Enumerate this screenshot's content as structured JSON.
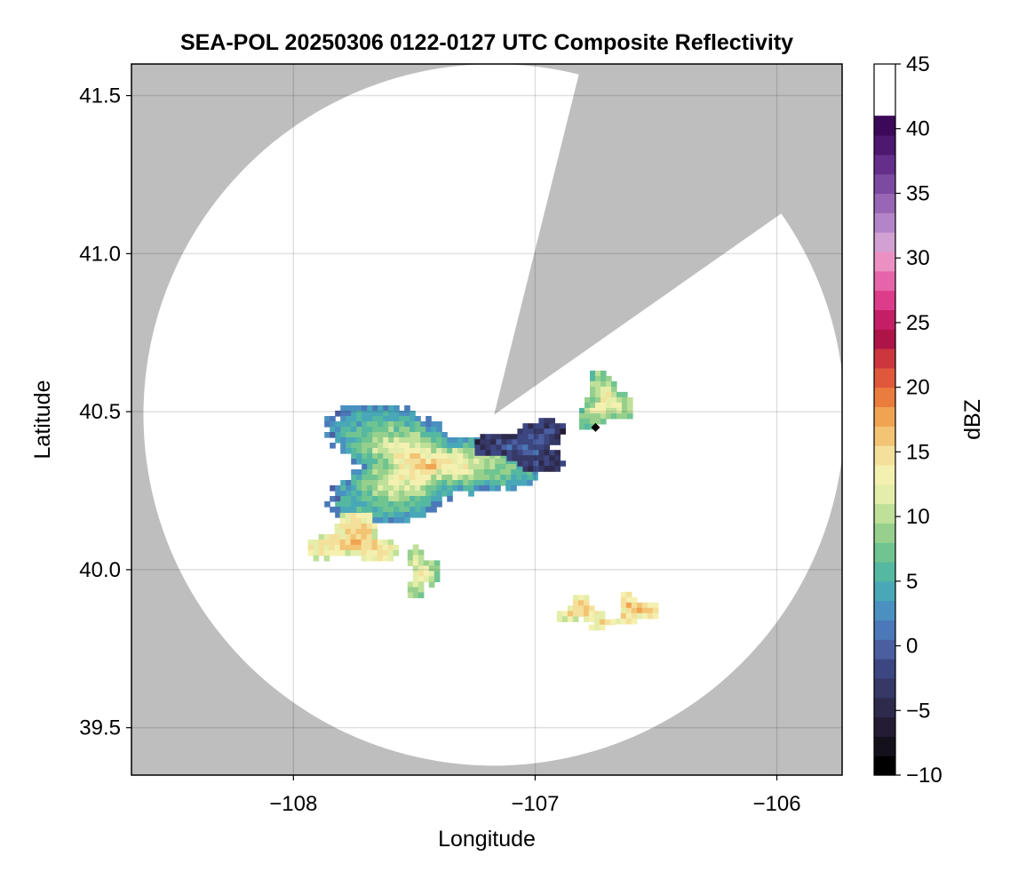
{
  "chart_data": {
    "type": "heatmap",
    "title": "SEA-POL 20250306 0122-0127 UTC Composite Reflectivity",
    "xlabel": "Longitude",
    "ylabel": "Latitude",
    "xlim": [
      -108.67,
      -105.73
    ],
    "ylim": [
      39.35,
      41.6
    ],
    "xticks": [
      -108,
      -107,
      -106
    ],
    "xtick_labels": [
      "−108",
      "−107",
      "−106"
    ],
    "yticks": [
      39.5,
      40.0,
      40.5,
      41.0,
      41.5
    ],
    "ytick_labels": [
      "39.5",
      "40.0",
      "40.5",
      "41.0",
      "41.5"
    ],
    "grid": true,
    "background_color": "#bebebe",
    "coverage": {
      "center": [
        -107.17,
        40.49
      ],
      "range_lat_deg": 1.11,
      "blocked_sectors_deg_from_north": [
        [
          14,
          55
        ]
      ]
    },
    "radar_site": [
      -106.75,
      40.45
    ],
    "colorbar": {
      "label": "dBZ",
      "min": -10,
      "max": 45,
      "step": 1.5,
      "ticks": [
        -10,
        -5,
        0,
        5,
        10,
        15,
        20,
        25,
        30,
        35,
        40,
        45
      ],
      "tick_labels": [
        "−10",
        "−5",
        "0",
        "5",
        "10",
        "15",
        "20",
        "25",
        "30",
        "35",
        "40",
        "45"
      ],
      "colors": [
        "#000000",
        "#14101c",
        "#241c34",
        "#2e2a4c",
        "#363866",
        "#3c4680",
        "#4a5ea0",
        "#4a78b8",
        "#4a90c0",
        "#48a8b8",
        "#55b8a0",
        "#70c490",
        "#96d08c",
        "#bee098",
        "#e4eeaa",
        "#f4f0b0",
        "#f4e09a",
        "#f2c474",
        "#f0a452",
        "#ea7c3e",
        "#e0583c",
        "#cc363c",
        "#ae1448",
        "#c41e66",
        "#dc3c8a",
        "#e664aa",
        "#ec90c4",
        "#d2a0d2",
        "#b484c8",
        "#9866b4",
        "#7c4aa0",
        "#642e8a",
        "#4e1870",
        "#3c0858"
      ]
    },
    "echoes": [
      {
        "name": "main-cell",
        "lon": -107.48,
        "lat": 40.34,
        "lon_half_width": 0.48,
        "lat_half_height": 0.18,
        "peak_dbz": 17,
        "edge_dbz": 2
      },
      {
        "name": "northeast-trail",
        "lon": -107.05,
        "lat": 40.4,
        "lon_half_width": 0.2,
        "lat_half_height": 0.08,
        "peak_dbz": 0,
        "edge_dbz": -4
      },
      {
        "name": "northeast-cell",
        "lon": -106.72,
        "lat": 40.54,
        "lon_half_width": 0.12,
        "lat_half_height": 0.09,
        "peak_dbz": 15,
        "edge_dbz": 7
      },
      {
        "name": "west-cell",
        "lon": -107.76,
        "lat": 40.1,
        "lon_half_width": 0.18,
        "lat_half_height": 0.08,
        "peak_dbz": 17,
        "edge_dbz": 12
      },
      {
        "name": "center-cell",
        "lon": -107.48,
        "lat": 40.0,
        "lon_half_width": 0.07,
        "lat_half_height": 0.08,
        "peak_dbz": 14,
        "edge_dbz": 8
      },
      {
        "name": "southeast-cell-a",
        "lon": -106.82,
        "lat": 39.88,
        "lon_half_width": 0.09,
        "lat_half_height": 0.04,
        "peak_dbz": 16,
        "edge_dbz": 12
      },
      {
        "name": "southeast-cell-b",
        "lon": -106.6,
        "lat": 39.88,
        "lon_half_width": 0.09,
        "lat_half_height": 0.05,
        "peak_dbz": 17,
        "edge_dbz": 13
      },
      {
        "name": "southeast-cell-c",
        "lon": -106.73,
        "lat": 39.84,
        "lon_half_width": 0.07,
        "lat_half_height": 0.02,
        "peak_dbz": 15,
        "edge_dbz": 12
      }
    ]
  }
}
